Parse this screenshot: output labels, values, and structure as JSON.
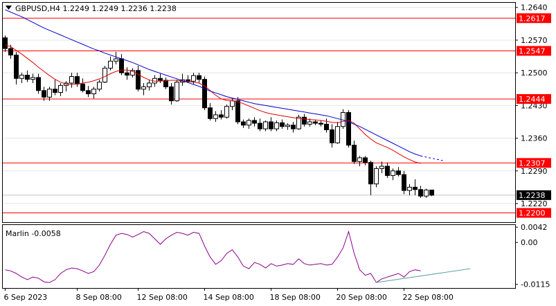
{
  "chart_data": [
    {
      "type": "candlestick",
      "title": "GBPUSD,H4  1.2249 1.2249 1.2236 1.2238",
      "symbol_icon": "triangle-down-icon",
      "ylim": [
        1.218,
        1.265
      ],
      "y_ticks": [
        "1.2640",
        "1.2570",
        "1.2500",
        "1.2430",
        "1.2360",
        "1.2290",
        "1.2220"
      ],
      "y_tick_values": [
        1.264,
        1.257,
        1.25,
        1.243,
        1.236,
        1.229,
        1.222
      ],
      "x_ticks": [
        "6 Sep 2023",
        "8 Sep 08:00",
        "12 Sep 08:00",
        "14 Sep 08:00",
        "18 Sep 08:00",
        "20 Sep 08:00",
        "22 Sep 08:00"
      ],
      "x_tick_index": [
        0,
        13,
        24,
        36,
        48,
        60,
        72
      ],
      "levels": [
        {
          "label": "1.2617",
          "value": 1.2617
        },
        {
          "label": "1.2547",
          "value": 1.2547
        },
        {
          "label": "1.2444",
          "value": 1.2444
        },
        {
          "label": "1.2307",
          "value": 1.2307
        },
        {
          "label": "1.2200",
          "value": 1.22
        }
      ],
      "current_price": {
        "label": "1.2238",
        "value": 1.2238
      },
      "colors": {
        "level": "#ff0000",
        "ma_fast": "#dd0000",
        "ma_slow": "#0000cc",
        "up": "#ffffff",
        "down": "#000000",
        "indicator": "#8b008b",
        "trendline": "#5f9ea0"
      },
      "candles": [
        [
          1.2575,
          1.258,
          1.2545,
          1.2552
        ],
        [
          1.2552,
          1.256,
          1.253,
          1.2538
        ],
        [
          1.2538,
          1.2545,
          1.2475,
          1.2488
        ],
        [
          1.2488,
          1.25,
          1.2478,
          1.2495
        ],
        [
          1.2495,
          1.2505,
          1.248,
          1.2486
        ],
        [
          1.2486,
          1.2498,
          1.2478,
          1.249
        ],
        [
          1.249,
          1.2498,
          1.2455,
          1.2462
        ],
        [
          1.2462,
          1.247,
          1.244,
          1.2448
        ],
        [
          1.2448,
          1.247,
          1.244,
          1.2465
        ],
        [
          1.2465,
          1.2485,
          1.2452,
          1.2458
        ],
        [
          1.2458,
          1.2478,
          1.245,
          1.2473
        ],
        [
          1.2473,
          1.2482,
          1.246,
          1.2478
        ],
        [
          1.2478,
          1.25,
          1.2468,
          1.2492
        ],
        [
          1.2492,
          1.25,
          1.247,
          1.2476
        ],
        [
          1.2476,
          1.2488,
          1.2458,
          1.2462
        ],
        [
          1.2462,
          1.2472,
          1.2448,
          1.2455
        ],
        [
          1.2455,
          1.247,
          1.2445,
          1.2465
        ],
        [
          1.2465,
          1.2485,
          1.246,
          1.248
        ],
        [
          1.248,
          1.2515,
          1.2478,
          1.251
        ],
        [
          1.251,
          1.2535,
          1.2505,
          1.2525
        ],
        [
          1.2525,
          1.2545,
          1.2518,
          1.253
        ],
        [
          1.253,
          1.254,
          1.2495,
          1.25
        ],
        [
          1.25,
          1.2512,
          1.2485,
          1.2495
        ],
        [
          1.2495,
          1.251,
          1.249,
          1.2505
        ],
        [
          1.2505,
          1.2515,
          1.246,
          1.2465
        ],
        [
          1.2465,
          1.2478,
          1.2452,
          1.247
        ],
        [
          1.247,
          1.2485,
          1.2462,
          1.2478
        ],
        [
          1.2478,
          1.2495,
          1.247,
          1.2488
        ],
        [
          1.2488,
          1.2498,
          1.2478,
          1.2484
        ],
        [
          1.2484,
          1.249,
          1.2465,
          1.247
        ],
        [
          1.247,
          1.2478,
          1.2432,
          1.244
        ],
        [
          1.244,
          1.2485,
          1.2438,
          1.248
        ],
        [
          1.248,
          1.2498,
          1.2472,
          1.2485
        ],
        [
          1.2485,
          1.2495,
          1.2478,
          1.2482
        ],
        [
          1.2482,
          1.25,
          1.2475,
          1.2494
        ],
        [
          1.2494,
          1.25,
          1.2478,
          1.2486
        ],
        [
          1.2486,
          1.2492,
          1.242,
          1.2425
        ],
        [
          1.2425,
          1.2435,
          1.2398,
          1.2402
        ],
        [
          1.2402,
          1.2418,
          1.2395,
          1.241
        ],
        [
          1.241,
          1.242,
          1.24,
          1.2405
        ],
        [
          1.2405,
          1.2432,
          1.2402,
          1.2428
        ],
        [
          1.2428,
          1.2445,
          1.242,
          1.244
        ],
        [
          1.244,
          1.2448,
          1.239,
          1.2395
        ],
        [
          1.2395,
          1.24,
          1.2382,
          1.2388
        ],
        [
          1.2388,
          1.2402,
          1.238,
          1.2398
        ],
        [
          1.2398,
          1.2405,
          1.2385,
          1.2392
        ],
        [
          1.2392,
          1.2402,
          1.2375,
          1.238
        ],
        [
          1.238,
          1.2398,
          1.2375,
          1.2395
        ],
        [
          1.2395,
          1.2405,
          1.2375,
          1.238
        ],
        [
          1.238,
          1.2398,
          1.2375,
          1.2393
        ],
        [
          1.2393,
          1.24,
          1.238,
          1.2385
        ],
        [
          1.2385,
          1.2392,
          1.2378,
          1.2388
        ],
        [
          1.2388,
          1.2395,
          1.2372,
          1.238
        ],
        [
          1.238,
          1.241,
          1.2378,
          1.2405
        ],
        [
          1.2405,
          1.2412,
          1.2385,
          1.239
        ],
        [
          1.239,
          1.2402,
          1.2385,
          1.2395
        ],
        [
          1.2395,
          1.24,
          1.2388,
          1.2392
        ],
        [
          1.2392,
          1.2398,
          1.2385,
          1.239
        ],
        [
          1.239,
          1.2402,
          1.2372,
          1.2378
        ],
        [
          1.2378,
          1.239,
          1.234,
          1.235
        ],
        [
          1.235,
          1.2395,
          1.2348,
          1.2385
        ],
        [
          1.2385,
          1.2422,
          1.238,
          1.2415
        ],
        [
          1.2415,
          1.242,
          1.234,
          1.2345
        ],
        [
          1.2345,
          1.2355,
          1.2305,
          1.231
        ],
        [
          1.231,
          1.2322,
          1.23,
          1.2318
        ],
        [
          1.2318,
          1.2322,
          1.2302,
          1.2308
        ],
        [
          1.2308,
          1.2312,
          1.2238,
          1.2262
        ],
        [
          1.2262,
          1.23,
          1.2255,
          1.2295
        ],
        [
          1.2295,
          1.231,
          1.2285,
          1.23
        ],
        [
          1.23,
          1.2308,
          1.2275,
          1.228
        ],
        [
          1.228,
          1.2295,
          1.227,
          1.229
        ],
        [
          1.229,
          1.2298,
          1.2278,
          1.2282
        ],
        [
          1.2282,
          1.229,
          1.224,
          1.2248
        ],
        [
          1.2248,
          1.2262,
          1.2238,
          1.2255
        ],
        [
          1.2255,
          1.2272,
          1.2238,
          1.225
        ],
        [
          1.225,
          1.2258,
          1.2232,
          1.2236
        ],
        [
          1.2236,
          1.2252,
          1.2232,
          1.2249
        ],
        [
          1.2249,
          1.2249,
          1.2236,
          1.2238
        ]
      ],
      "ma_fast": [
        1.256,
        1.2556,
        1.2548,
        1.254,
        1.2531,
        1.2522,
        1.2512,
        1.2503,
        1.2494,
        1.2486,
        1.248,
        1.2476,
        1.2475,
        1.2476,
        1.2478,
        1.248,
        1.2483,
        1.2487,
        1.2492,
        1.2498,
        1.2503,
        1.2506,
        1.2506,
        1.2503,
        1.2497,
        1.249,
        1.2485,
        1.2482,
        1.2482,
        1.2483,
        1.2484,
        1.2484,
        1.2482,
        1.2481,
        1.248,
        1.2478,
        1.2472,
        1.2462,
        1.2452,
        1.2444,
        1.2441,
        1.244,
        1.2438,
        1.2434,
        1.2429,
        1.2424,
        1.2419,
        1.2415,
        1.2412,
        1.241,
        1.2408,
        1.2406,
        1.2404,
        1.2402,
        1.2401,
        1.24,
        1.2399,
        1.2398,
        1.2396,
        1.2394,
        1.2393,
        1.2396,
        1.2398,
        1.2392,
        1.238,
        1.2368,
        1.2358,
        1.235,
        1.2345,
        1.234,
        1.2334,
        1.2327,
        1.232,
        1.2314,
        1.2309,
        1.2306
      ],
      "ma_slow": [
        1.2635,
        1.263,
        1.2625,
        1.262,
        1.2614,
        1.2608,
        1.2602,
        1.2596,
        1.2591,
        1.2586,
        1.2581,
        1.2576,
        1.2571,
        1.2566,
        1.2561,
        1.2556,
        1.2551,
        1.2547,
        1.2542,
        1.2538,
        1.2534,
        1.253,
        1.2526,
        1.2522,
        1.2517,
        1.2512,
        1.2507,
        1.2503,
        1.2499,
        1.2495,
        1.2491,
        1.2487,
        1.2483,
        1.2479,
        1.2475,
        1.2471,
        1.2466,
        1.2461,
        1.2457,
        1.2453,
        1.2449,
        1.2446,
        1.2443,
        1.244,
        1.2437,
        1.2434,
        1.2432,
        1.243,
        1.2428,
        1.2426,
        1.2424,
        1.2422,
        1.242,
        1.2418,
        1.2416,
        1.2414,
        1.2412,
        1.241,
        1.2408,
        1.2405,
        1.2402,
        1.2399,
        1.2395,
        1.239,
        1.2385,
        1.2379,
        1.2373,
        1.2367,
        1.2361,
        1.2355,
        1.2349,
        1.2343,
        1.2337,
        1.2331,
        1.2326,
        1.2322
      ],
      "ma_slow_projection": [
        1.2322,
        1.2312
      ]
    },
    {
      "type": "line",
      "title": "Marlin -0.0058",
      "ylim": [
        -0.0125,
        0.0048
      ],
      "y_ticks": [
        "0.0042",
        "0.00",
        "-0.0115"
      ],
      "y_tick_values": [
        0.0042,
        0.0,
        -0.0115
      ],
      "values": [
        -0.0075,
        -0.0078,
        -0.0085,
        -0.0095,
        -0.0102,
        -0.0095,
        -0.0098,
        -0.0108,
        -0.011,
        -0.0102,
        -0.0085,
        -0.0075,
        -0.007,
        -0.0072,
        -0.0078,
        -0.0085,
        -0.008,
        -0.0062,
        -0.0035,
        -0.0005,
        0.002,
        0.0025,
        0.0022,
        0.0015,
        0.0022,
        0.003,
        0.0025,
        0.001,
        -0.0005,
        0.001,
        0.002,
        0.0028,
        0.0025,
        0.002,
        0.0028,
        0.0025,
        -0.001,
        -0.004,
        -0.006,
        -0.005,
        -0.003,
        -0.002,
        -0.004,
        -0.0065,
        -0.0072,
        -0.0055,
        -0.006,
        -0.007,
        -0.0058,
        -0.0065,
        -0.0062,
        -0.0058,
        -0.006,
        -0.0045,
        -0.0058,
        -0.0062,
        -0.006,
        -0.0058,
        -0.0062,
        -0.006,
        -0.004,
        -0.0015,
        0.003,
        -0.003,
        -0.0075,
        -0.009,
        -0.0085,
        -0.011,
        -0.01,
        -0.0095,
        -0.009,
        -0.0085,
        -0.0095,
        -0.008,
        -0.0075,
        -0.0078
      ],
      "trendline": {
        "from": [
          67,
          -0.011
        ],
        "to": [
          84,
          -0.0072
        ]
      }
    }
  ]
}
